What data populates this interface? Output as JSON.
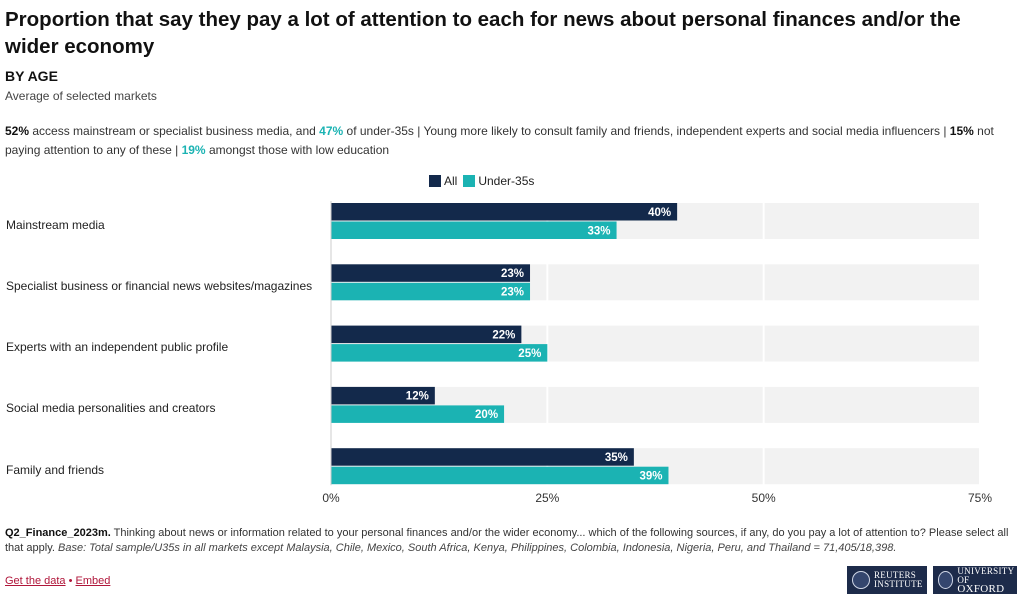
{
  "header": {
    "title": "Proportion that say they pay a lot of attention to each for news about personal finances and/or the wider economy",
    "subtitle": "BY AGE",
    "note": "Average of selected markets"
  },
  "summary": {
    "v1": "52%",
    "t1": " access mainstream or specialist business media, and ",
    "v2": "47%",
    "t2": " of under-35s | Young more likely to consult family and friends, independent experts and social media influencers | ",
    "v3": "15%",
    "t3": " not paying attention to any of these | ",
    "v4": "19%",
    "t4": " amongst those with low education"
  },
  "colors": {
    "all": "#13294b",
    "under35": "#1bb3b3",
    "band": "#f2f2f2"
  },
  "chart_data": {
    "type": "bar",
    "orientation": "horizontal",
    "categories": [
      "Mainstream media",
      "Specialist business or financial news websites/magazines",
      "Experts with an independent public profile",
      "Social media personalities and creators",
      "Family and friends"
    ],
    "series": [
      {
        "name": "All",
        "values": [
          40,
          23,
          22,
          12,
          35
        ],
        "labels": [
          "40%",
          "23%",
          "22%",
          "12%",
          "35%"
        ]
      },
      {
        "name": "Under-35s",
        "values": [
          33,
          23,
          25,
          20,
          39
        ],
        "labels": [
          "33%",
          "23%",
          "25%",
          "20%",
          "39%"
        ]
      }
    ],
    "xlim": [
      0,
      75
    ],
    "ticks": [
      0,
      25,
      50,
      75
    ],
    "tick_labels": [
      "0%",
      "25%",
      "50%",
      "75%"
    ],
    "legend": [
      "All",
      "Under-35s"
    ],
    "legend_position": "top-center",
    "grid": true
  },
  "footer": {
    "qid": "Q2_Finance_2023m.",
    "question": " Thinking about news or information related to your personal finances and/or the wider economy... which of the following sources, if any, do you pay a lot of attention to? Please select all that apply. ",
    "base": "Base: Total sample/U35s in all markets except Malaysia, Chile, Mexico, South Africa, Kenya, Philippines, Colombia, Indonesia, Nigeria, Peru, and Thailand = 71,405/18,398.",
    "get_data": "Get the data",
    "sep": " • ",
    "embed": "Embed"
  },
  "logos": {
    "reuters_line1": "REUTERS",
    "reuters_line2": "INSTITUTE",
    "oxford_line1": "UNIVERSITY OF",
    "oxford_line2": "OXFORD"
  }
}
